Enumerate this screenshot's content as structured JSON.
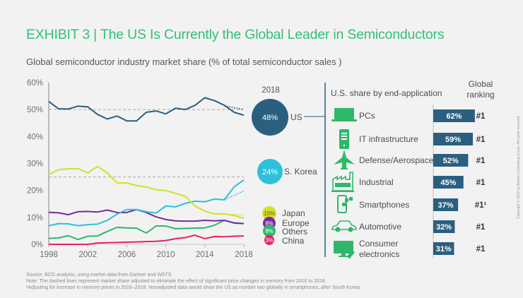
{
  "title": "EXHIBIT 3 | The US Is Currently the Global Leader in Semiconductors",
  "subtitle": "Global semiconductor industry market share (% of total semiconductor sales )",
  "chart_data": [
    {
      "type": "line",
      "title": "Global semiconductor industry market share (% of total semiconductor sales )",
      "xlabel": "",
      "ylabel": "",
      "x": [
        1998,
        1999,
        2000,
        2001,
        2002,
        2003,
        2004,
        2005,
        2006,
        2007,
        2008,
        2009,
        2010,
        2011,
        2012,
        2013,
        2014,
        2015,
        2016,
        2017,
        2018
      ],
      "xticks": [
        "1998",
        "2002",
        "2006",
        "2010",
        "2014",
        "2018"
      ],
      "yticks": [
        "0%",
        "10%",
        "20%",
        "30%",
        "40%",
        "50%",
        "60%"
      ],
      "ylim": [
        0,
        60
      ],
      "xlim": [
        1998,
        2018
      ],
      "reference_lines": [
        50,
        25
      ],
      "series": [
        {
          "name": "US",
          "color": "#2a5f80",
          "values": [
            53.0,
            50.3,
            50.2,
            51.3,
            51.0,
            48.2,
            46.5,
            47.6,
            45.8,
            45.8,
            49.0,
            49.5,
            48.4,
            50.5,
            50.0,
            51.6,
            54.4,
            53.3,
            51.6,
            49.0,
            47.9
          ],
          "adjusted": {
            "x": [
              2016,
              2018
            ],
            "values": [
              51.4,
              50.0
            ]
          }
        },
        {
          "name": "S. Korea",
          "color": "#2ec0d8",
          "values": [
            6.9,
            7.7,
            7.6,
            6.9,
            7.3,
            7.5,
            8.9,
            11.2,
            12.9,
            12.9,
            12.1,
            11.6,
            14.2,
            13.9,
            15.2,
            16.0,
            15.8,
            16.8,
            16.5,
            21.3,
            23.9
          ],
          "adjusted": {
            "x": [
              2016,
              2018
            ],
            "values": [
              16.5,
              19.8
            ]
          }
        },
        {
          "name": "Japan",
          "color": "#d4df2a",
          "values": [
            25.9,
            27.7,
            28.0,
            28.1,
            26.5,
            28.9,
            26.5,
            22.8,
            22.8,
            21.8,
            21.3,
            20.2,
            20.0,
            18.9,
            17.8,
            14.2,
            12.3,
            11.3,
            11.3,
            10.7,
            9.7
          ],
          "adjusted": {
            "x": [
              2016,
              2018
            ],
            "values": [
              11.3,
              10.8
            ]
          }
        },
        {
          "name": "Europe",
          "color": "#7a2a9e",
          "values": [
            11.9,
            11.7,
            11.0,
            12.1,
            12.2,
            12.0,
            12.7,
            11.8,
            11.8,
            12.9,
            11.8,
            10.2,
            9.2,
            8.7,
            8.6,
            8.6,
            8.9,
            8.7,
            8.9,
            7.9,
            7.7
          ]
        },
        {
          "name": "Others",
          "color": "#2fb86a",
          "values": [
            2.2,
            2.4,
            3.2,
            1.8,
            3.0,
            3.1,
            4.8,
            6.3,
            6.1,
            6.0,
            4.2,
            6.8,
            6.8,
            5.8,
            5.9,
            6.0,
            6.1,
            7.1,
            8.9,
            8.0,
            7.7
          ]
        },
        {
          "name": "China",
          "color": "#e3245f",
          "values": [
            0.0,
            0.0,
            0.0,
            0.0,
            0.0,
            0.5,
            0.6,
            0.7,
            0.8,
            0.9,
            1.0,
            1.1,
            1.4,
            2.1,
            2.5,
            3.4,
            2.1,
            2.9,
            2.8,
            3.0,
            3.1
          ]
        }
      ],
      "end_labels": {
        "year_label": "2018",
        "items": [
          {
            "name": "US",
            "value": "48%",
            "color": "#2a5f80"
          },
          {
            "name": "S. Korea",
            "value": "24%",
            "color": "#2ec0d8"
          },
          {
            "name": "Japan",
            "value": "10%",
            "color": "#d4df2a"
          },
          {
            "name": "Europe",
            "value": "8%",
            "color": "#7a2a9e"
          },
          {
            "name": "Others",
            "value": "8%",
            "color": "#2fb86a"
          },
          {
            "name": "China",
            "value": "3%",
            "color": "#e3245f"
          }
        ]
      }
    },
    {
      "type": "bar",
      "title": "U.S. share by end-application",
      "rank_header": "Global ranking",
      "categories": [
        "PCs",
        "IT infrastructure",
        "Defense/Aerospace",
        "Industrial",
        "Smartphones",
        "Automotive",
        "Consumer electronics"
      ],
      "values": [
        62,
        59,
        52,
        45,
        37,
        32,
        31
      ],
      "value_labels": [
        "62%",
        "59%",
        "52%",
        "45%",
        "37%",
        "32%",
        "31%"
      ],
      "ranks": [
        "#1",
        "#1",
        "#1",
        "#1",
        "#1¹",
        "#1",
        "#1"
      ],
      "icons": [
        "laptop-icon",
        "server-icon",
        "airplane-icon",
        "factory-icon",
        "smartphone-icon",
        "car-icon",
        "tv-icon"
      ],
      "bar_color": "#2a5f80",
      "icon_color": "#2fb86a"
    }
  ],
  "footnotes": [
    "Source: BCG analysis, using market data from Gartner and WSTS.",
    "Note: The dashed lines represent market share adjusted to eliminate the effect of significant price changes in memory from 2016 to 2018.",
    "¹Adjusting for increase in memory prices in 2016–2018. Nonadjusted data would show the US as number two globally in smartphones, after South Korea."
  ],
  "copyright": "Copyright © 2019 by Boston Consulting Group. All rights reserved."
}
